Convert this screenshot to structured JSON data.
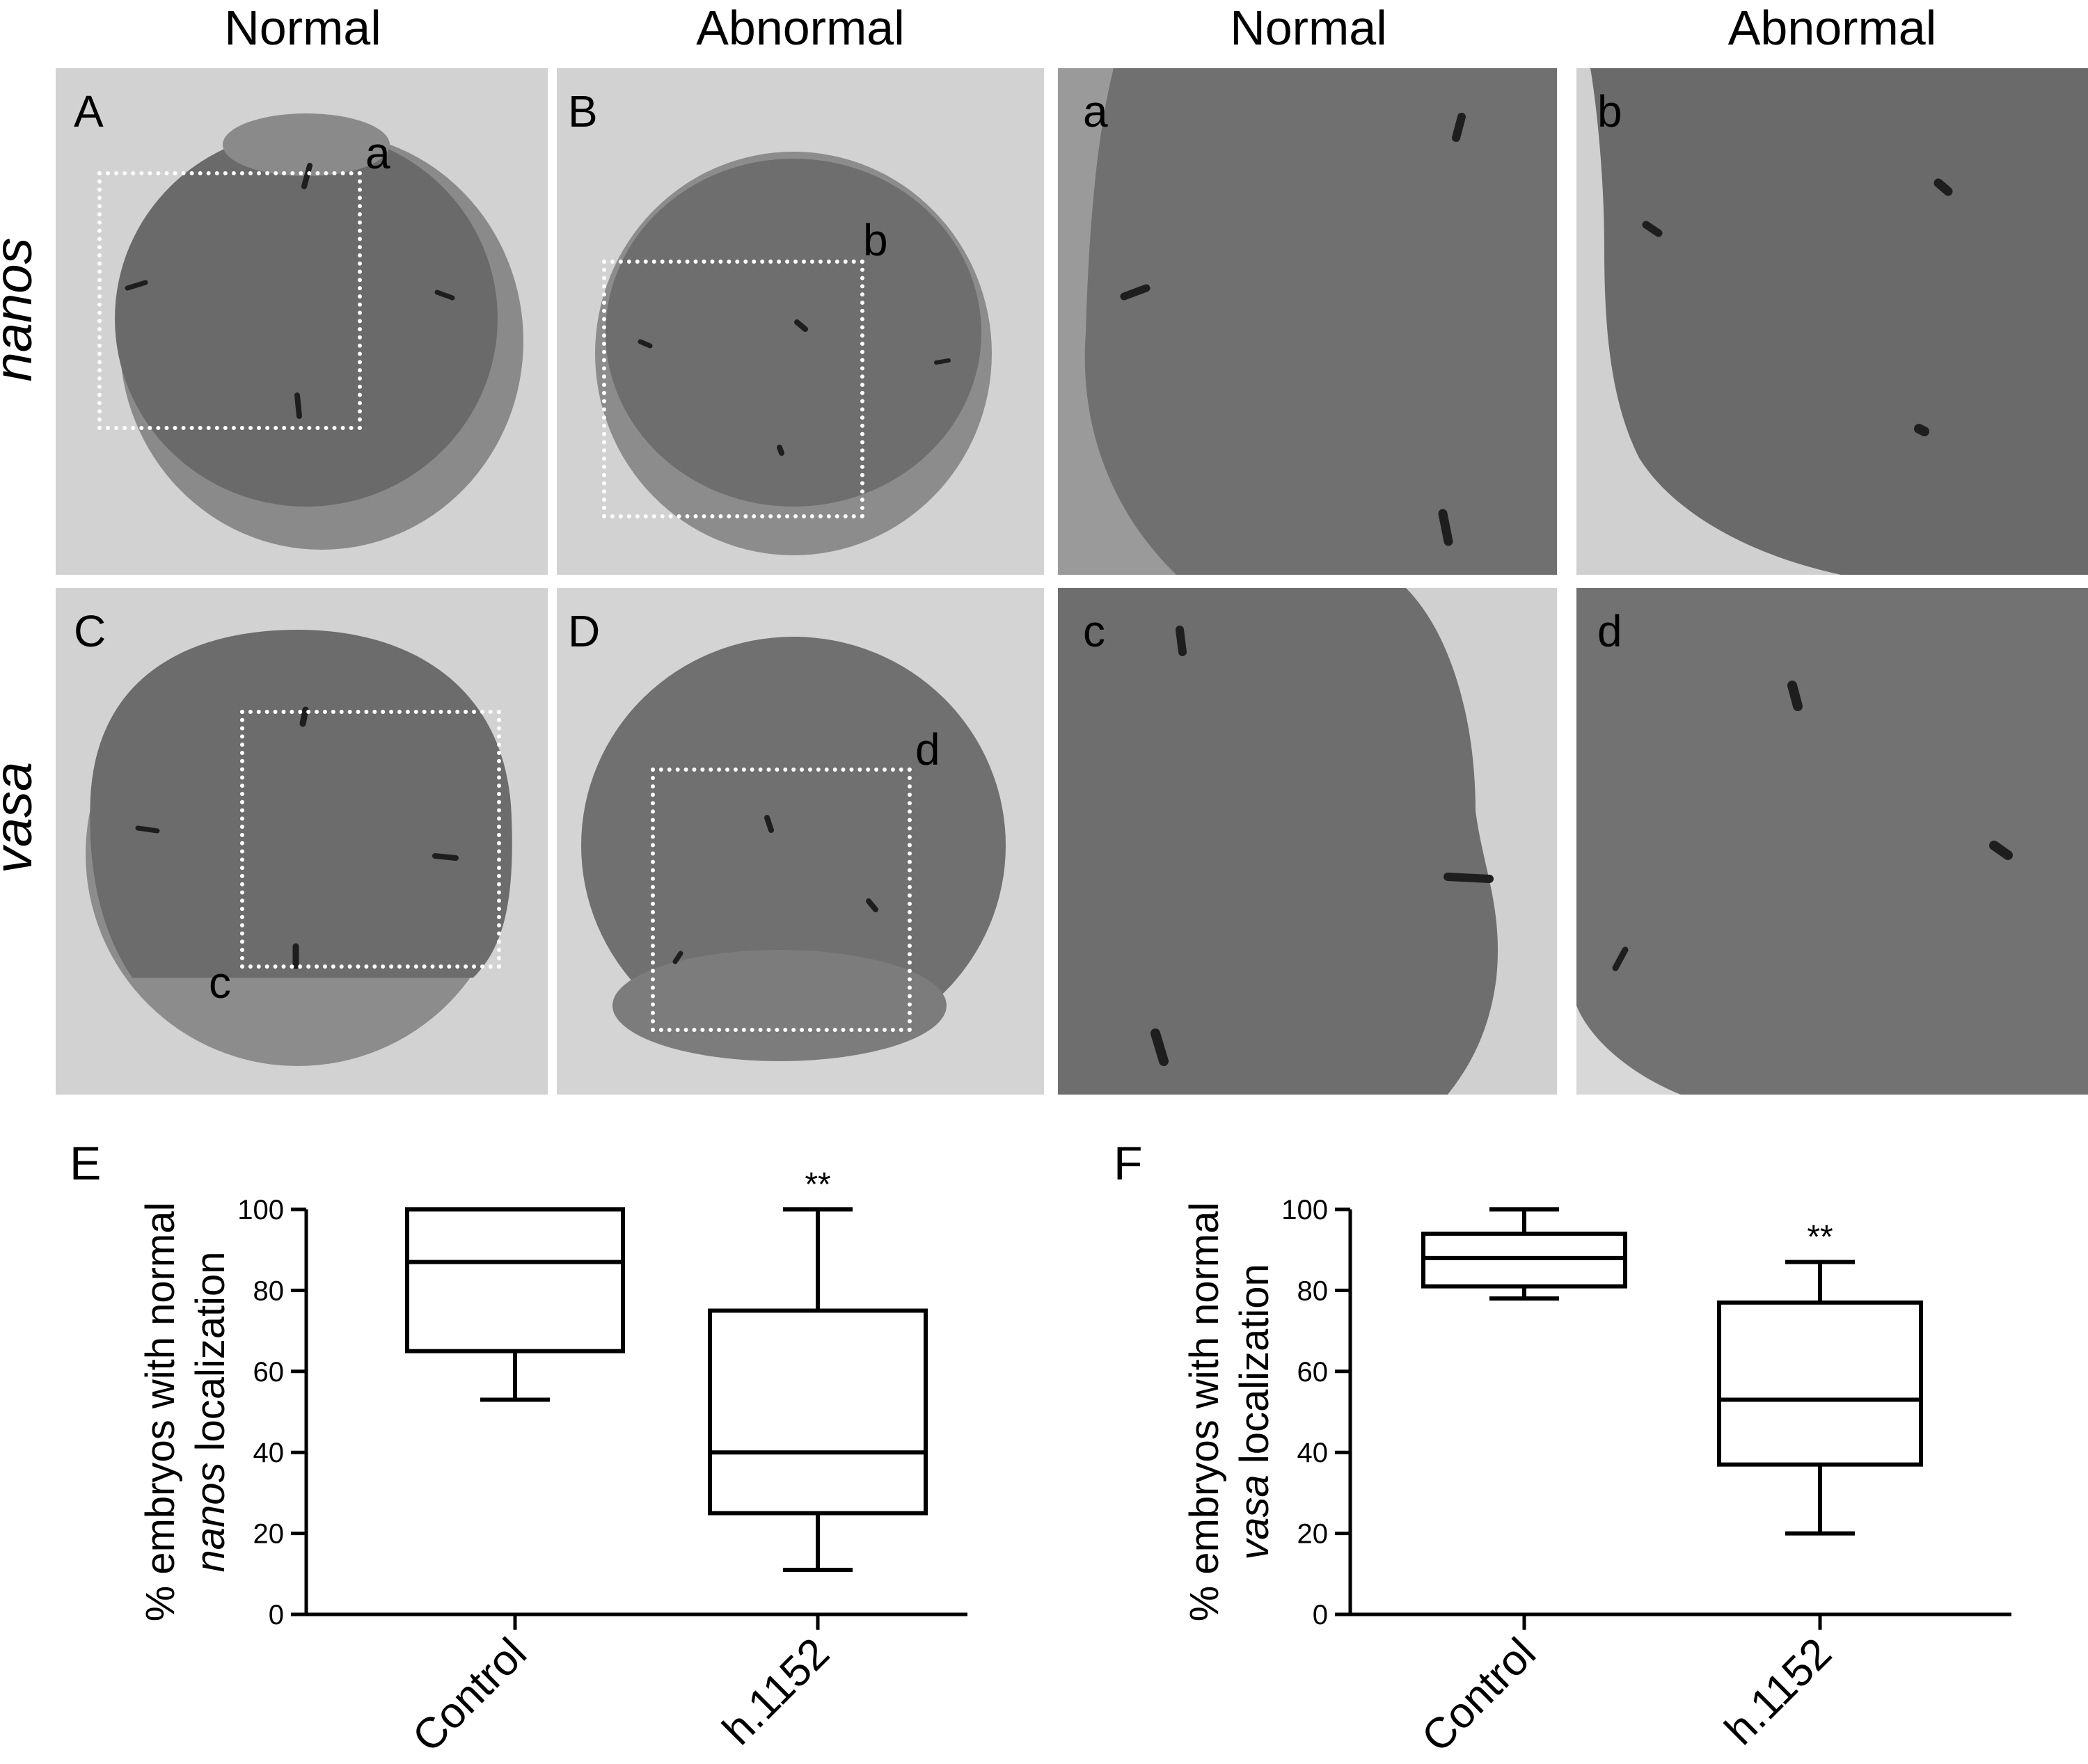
{
  "column_headers": [
    "Normal",
    "Abnormal",
    "Normal",
    "Abnormal"
  ],
  "row_labels": [
    "nanos",
    "vasa"
  ],
  "panels": {
    "A": "A",
    "B": "B",
    "C": "C",
    "D": "D",
    "a": "a",
    "b": "b",
    "c": "c",
    "d": "d"
  },
  "inset_labels": {
    "a": "a",
    "b": "b",
    "c": "c",
    "d": "d"
  },
  "colors": {
    "background": "#ffffff",
    "image_bg": "#d2d2d2",
    "embryo": "#666666",
    "dots": "#1e1e1e",
    "box_stroke": "#000000"
  },
  "chart_data": [
    {
      "panel_label": "E",
      "type": "box",
      "ylabel_line1": "% embryos with normal",
      "ylabel_gene": "nanos",
      "ylabel_line2_rest": " localization",
      "categories": [
        "Control",
        "h.1152"
      ],
      "ylim": [
        0,
        100
      ],
      "yticks": [
        0,
        20,
        40,
        60,
        80,
        100
      ],
      "boxes": [
        {
          "name": "Control",
          "min": 53,
          "q1": 65,
          "median": 87,
          "q3": 100,
          "max": 100
        },
        {
          "name": "h.1152",
          "min": 11,
          "q1": 25,
          "median": 40,
          "q3": 75,
          "max": 100
        }
      ],
      "annotations": [
        {
          "category": "h.1152",
          "text": "**"
        }
      ]
    },
    {
      "panel_label": "F",
      "type": "box",
      "ylabel_line1": "% embryos with normal",
      "ylabel_gene": "vasa",
      "ylabel_line2_rest": " localization",
      "categories": [
        "Control",
        "h.1152"
      ],
      "ylim": [
        0,
        100
      ],
      "yticks": [
        0,
        20,
        40,
        60,
        80,
        100
      ],
      "boxes": [
        {
          "name": "Control",
          "min": 78,
          "q1": 81,
          "median": 88,
          "q3": 94,
          "max": 100
        },
        {
          "name": "h.1152",
          "min": 20,
          "q1": 37,
          "median": 53,
          "q3": 77,
          "max": 87
        }
      ],
      "annotations": [
        {
          "category": "h.1152",
          "text": "**"
        }
      ]
    }
  ]
}
